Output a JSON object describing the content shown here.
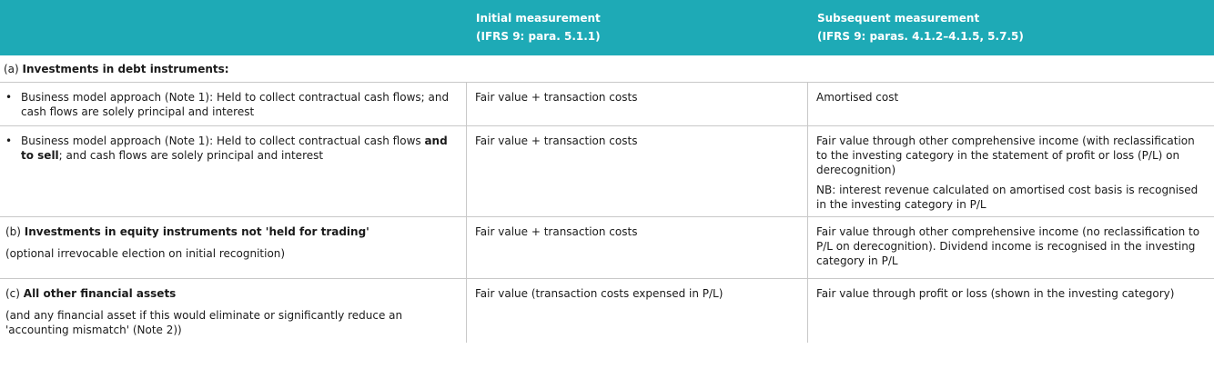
{
  "header": {
    "col1": "",
    "col2_line1": "Initial measurement",
    "col2_line2": "(IFRS 9: para. 5.1.1)",
    "col3_line1": "Subsequent measurement",
    "col3_line2": "(IFRS 9: paras. 4.1.2–4.1.5, 5.7.5)"
  },
  "section_a": {
    "prefix": "(a) ",
    "title": "Investments in debt instruments",
    "suffix": ":"
  },
  "rows": {
    "r1": {
      "bullet": "•",
      "desc": "Business model approach (Note 1): Held to collect contractual cash flows; and cash flows are solely principal and interest",
      "initial": "Fair value + transaction costs",
      "subsequent": "Amortised cost"
    },
    "r2": {
      "bullet": "•",
      "desc_a": "Business model approach (Note 1): Held to collect contractual cash flows ",
      "desc_bold": "and to sell",
      "desc_b": "; and cash flows are solely principal and interest",
      "initial": "Fair value + transaction costs",
      "subsequent": "Fair value through other comprehensive income (with reclassification to the investing category in the statement of profit or loss (P/L) on derecognition)",
      "note": "NB: interest revenue calculated on amortised cost basis is recognised in the investing category in P/L"
    },
    "r3": {
      "prefix": "(b) ",
      "title": "Investments in equity instruments not 'held for trading'",
      "sub": "(optional irrevocable election on initial recognition)",
      "initial": "Fair value + transaction costs",
      "subsequent": "Fair value through other comprehensive income (no reclassification to P/L on derecognition). Dividend income is recognised in the investing category in P/L"
    },
    "r4": {
      "prefix": "(c) ",
      "title": "All other financial assets",
      "sub": "(and any financial asset if this would eliminate or significantly reduce an 'accounting mismatch' (Note 2))",
      "initial": "Fair value (transaction costs expensed in P/L)",
      "subsequent": "Fair value through profit or loss (shown in the investing category)"
    }
  }
}
